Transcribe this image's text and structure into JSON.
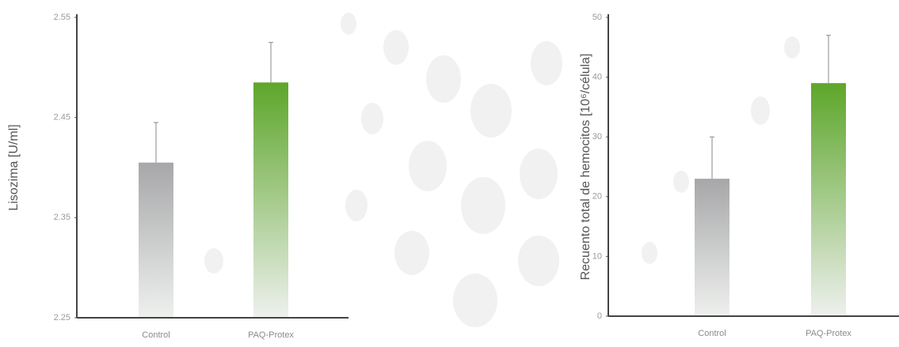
{
  "chart_data": [
    {
      "type": "bar",
      "y_label": "Lisozima [U/ml]",
      "categories": [
        "Control",
        "PAQ-Protex"
      ],
      "values": [
        2.405,
        2.485
      ],
      "errors": [
        0.04,
        0.04
      ],
      "colors": [
        "#a7a7a9",
        "#5da62a"
      ],
      "ylim": [
        2.25,
        2.55
      ],
      "yticks": [
        2.25,
        2.35,
        2.45,
        2.55
      ]
    },
    {
      "type": "bar",
      "y_label": "Recuento total de hemocitos [10⁶/célula]",
      "categories": [
        "Control",
        "PAQ-Protex"
      ],
      "values": [
        23,
        39
      ],
      "errors": [
        7,
        8
      ],
      "colors": [
        "#a7a7a9",
        "#5da62a"
      ],
      "ylim": [
        0,
        50
      ],
      "yticks": [
        0,
        10,
        20,
        30,
        40,
        50
      ]
    }
  ]
}
